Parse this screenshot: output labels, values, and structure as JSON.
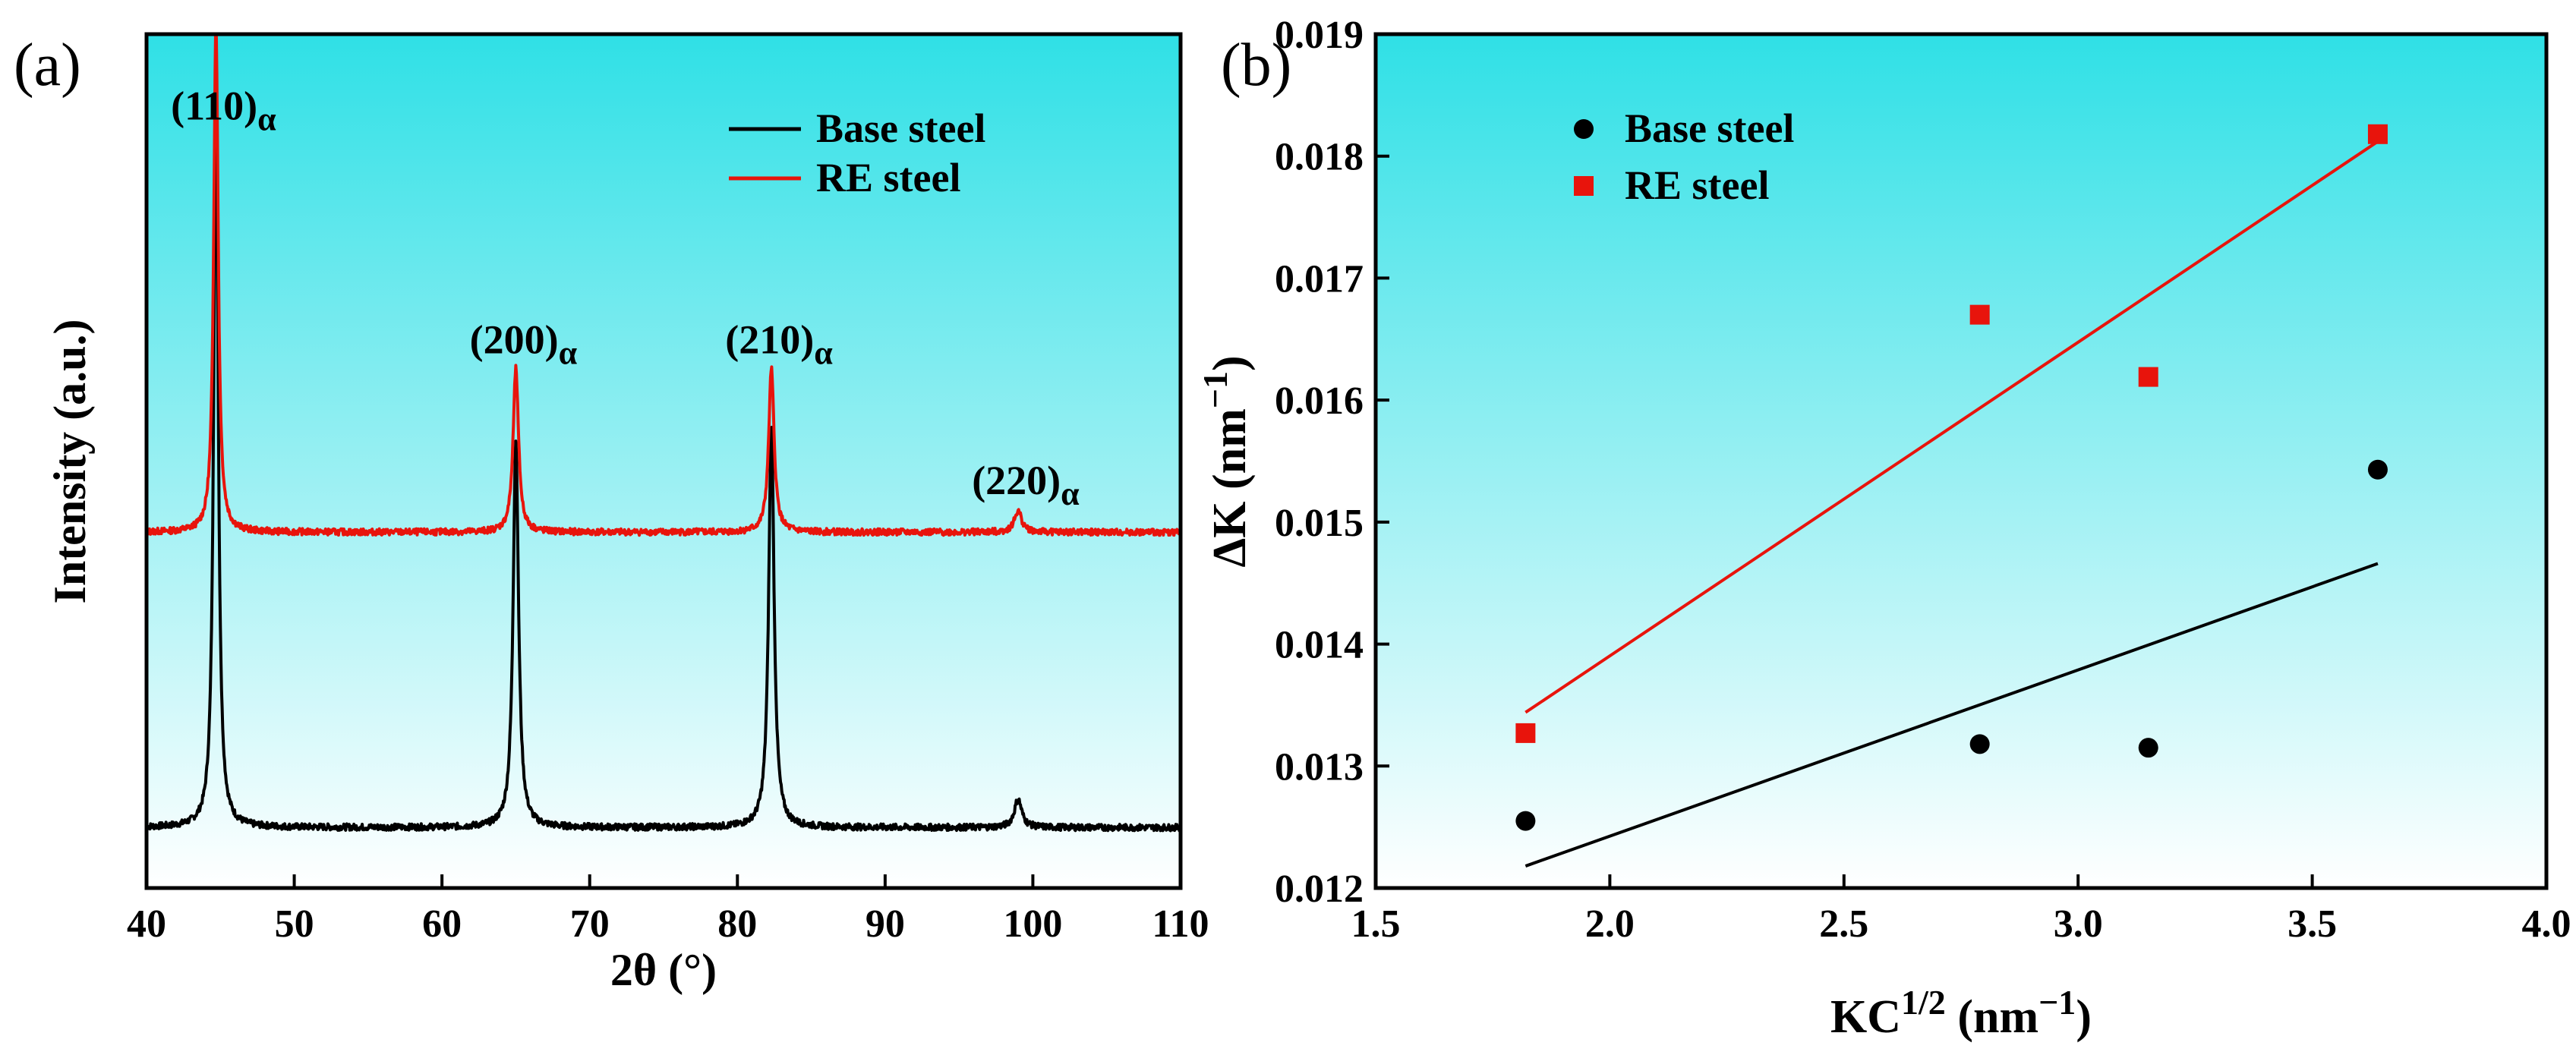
{
  "chart_data": [
    {
      "type": "line",
      "panel_label": "(a)",
      "xlabel": "2θ (°)",
      "ylabel": "Intensity (a.u.)",
      "xlim": [
        40,
        110
      ],
      "xticks": [
        "40",
        "50",
        "60",
        "70",
        "80",
        "90",
        "100",
        "110"
      ],
      "background": [
        "#2fe0e6",
        "#ffffff"
      ],
      "legend_position": "top-right",
      "series": [
        {
          "name": "Base steel",
          "color": "#000000",
          "baseline": 0.17,
          "peaks": [
            {
              "x": 44.7,
              "height": 2.13,
              "width": 0.18
            },
            {
              "x": 65.0,
              "height": 1.09,
              "width": 0.22
            },
            {
              "x": 82.3,
              "height": 1.13,
              "width": 0.22
            },
            {
              "x": 99.0,
              "height": 0.08,
              "width": 0.3
            }
          ]
        },
        {
          "name": "RE steel",
          "color": "#e8140c",
          "baseline": 1.0,
          "peaks": [
            {
              "x": 44.7,
              "height": 1.44,
              "width": 0.18
            },
            {
              "x": 65.0,
              "height": 0.46,
              "width": 0.22
            },
            {
              "x": 82.3,
              "height": 0.46,
              "width": 0.22
            },
            {
              "x": 99.0,
              "height": 0.06,
              "width": 0.3
            }
          ]
        }
      ],
      "annotations": [
        {
          "text": "(110)",
          "sub": "α",
          "x": 44.7
        },
        {
          "text": "(200)",
          "sub": "α",
          "x": 65.0
        },
        {
          "text": "(210)",
          "sub": "α",
          "x": 82.3
        },
        {
          "text": "(220)",
          "sub": "α",
          "x": 99.0
        }
      ]
    },
    {
      "type": "scatter",
      "panel_label": "(b)",
      "xlabel_base": "KC",
      "xlabel_sup": "1/2",
      "xlabel_unit": " (nm",
      "xlabel_unit_sup": "−1",
      "xlabel_close": ")",
      "ylabel_base": "ΔK (nm",
      "ylabel_sup": "−1",
      "ylabel_close": ")",
      "xlim": [
        1.5,
        4.0
      ],
      "ylim": [
        0.012,
        0.019
      ],
      "xticks": [
        "1.5",
        "2.0",
        "2.5",
        "3.0",
        "3.5",
        "4.0"
      ],
      "yticks": [
        "0.012",
        "0.013",
        "0.014",
        "0.015",
        "0.016",
        "0.017",
        "0.018",
        "0.019"
      ],
      "background": [
        "#2fe0e6",
        "#ffffff"
      ],
      "legend_position": "top-left",
      "series": [
        {
          "name": "Base steel",
          "marker": "circle",
          "color": "#000000",
          "x": [
            1.82,
            2.79,
            3.15,
            3.64
          ],
          "y": [
            0.01255,
            0.01318,
            0.01315,
            0.01543
          ],
          "fit": {
            "x": [
              1.82,
              3.64
            ],
            "y": [
              0.01218,
              0.01466
            ]
          }
        },
        {
          "name": "RE steel",
          "marker": "square",
          "color": "#e8140c",
          "x": [
            1.82,
            2.79,
            3.15,
            3.64
          ],
          "y": [
            0.01327,
            0.0167,
            0.01619,
            0.01818
          ],
          "fit": {
            "x": [
              1.82,
              3.64
            ],
            "y": [
              0.01344,
              0.01812
            ]
          }
        }
      ]
    }
  ]
}
